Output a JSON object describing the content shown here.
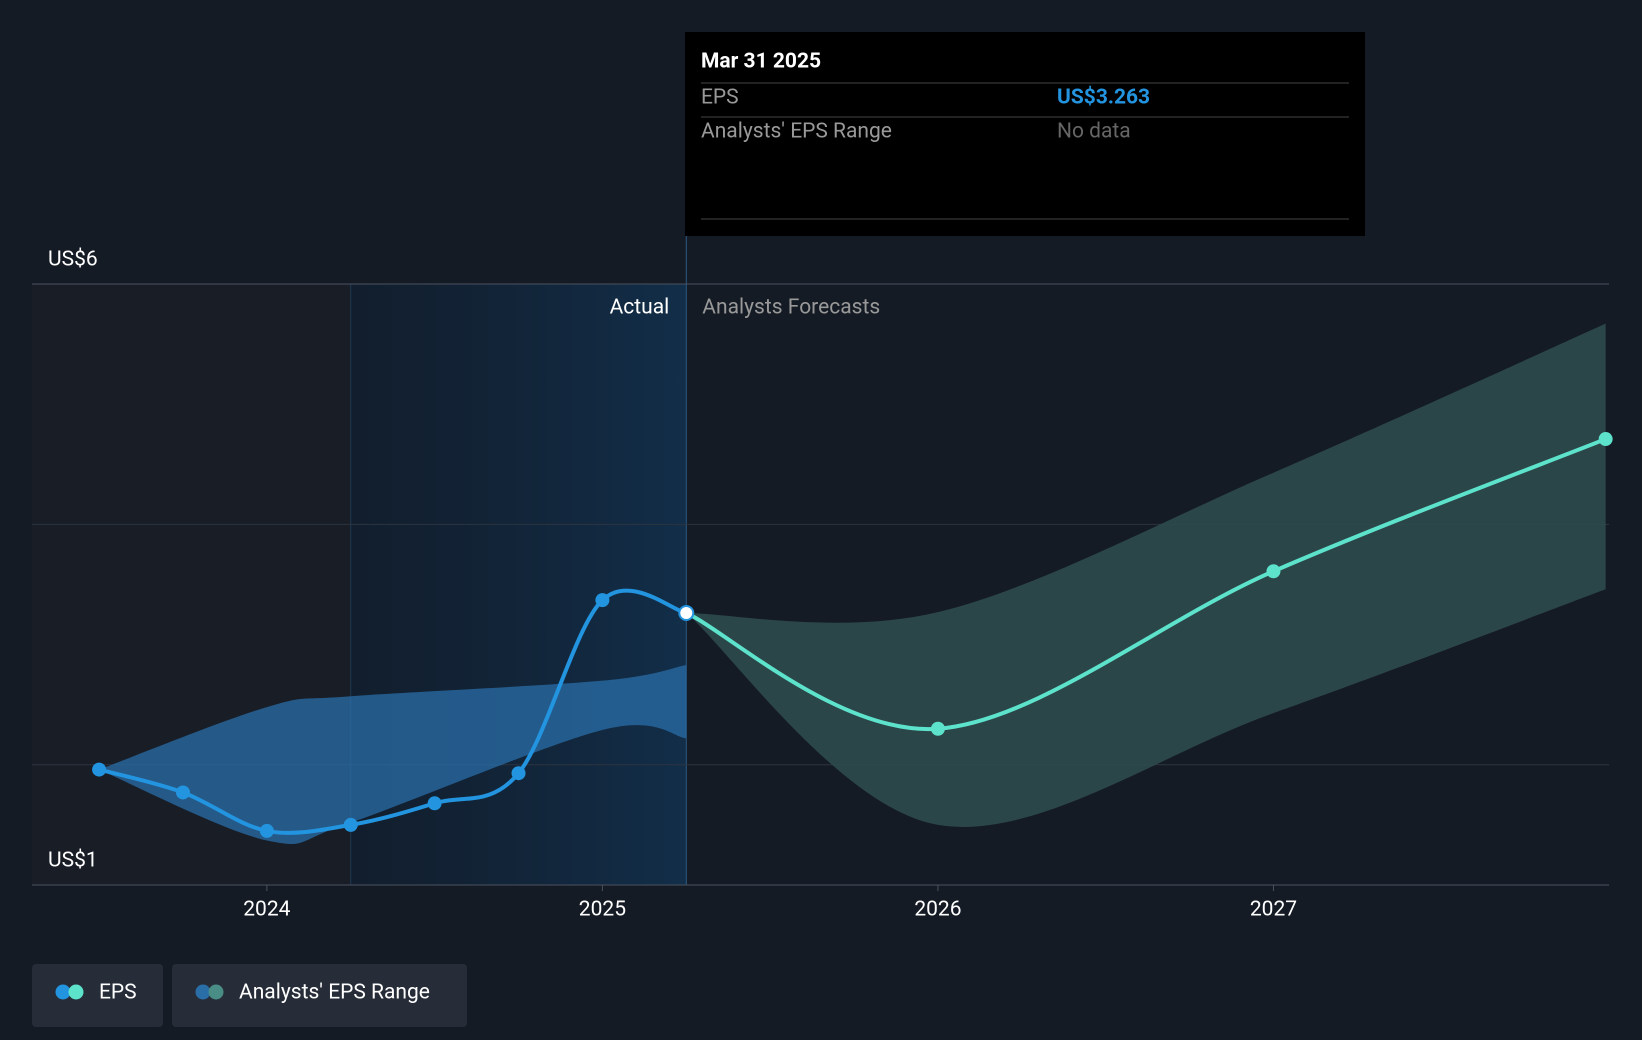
{
  "chart_data": {
    "type": "line",
    "actual_label": "Actual",
    "forecast_label": "Analysts Forecasts",
    "xlim": [
      2023.3,
      2028
    ],
    "xticks": [
      2024,
      2025,
      2026,
      2027
    ],
    "ylim": [
      1,
      6
    ],
    "yticks": [
      {
        "value": 1,
        "label": "US$1"
      },
      {
        "value": 2,
        "label": null
      },
      {
        "value": 4,
        "label": null
      },
      {
        "value": 6,
        "label": "US$6"
      }
    ],
    "grid": true,
    "actual_period": [
      2024.25,
      2025.25
    ],
    "series": [
      {
        "name": "EPS",
        "color": "#2394df",
        "forecast_color": "#5de2cc",
        "x": [
          2023.5,
          2023.75,
          2024,
          2024.25,
          2024.5,
          2024.75,
          2025,
          2025.25
        ],
        "values": [
          1.96,
          1.77,
          1.45,
          1.5,
          1.68,
          1.93,
          3.37,
          3.263
        ],
        "forecast_x": [
          2026,
          2027,
          2027.99
        ],
        "forecast_values": [
          2.3,
          3.61,
          4.71
        ]
      },
      {
        "name": "Analysts' EPS Range",
        "color": "#2a6ea8",
        "forecast_color": "#2d4b4c",
        "x": [
          2023.5,
          2024,
          2024.25,
          2025,
          2025.25
        ],
        "lower": [
          1.96,
          1.37,
          1.52,
          2.29,
          2.22
        ],
        "upper": [
          1.96,
          2.48,
          2.57,
          2.7,
          2.83
        ],
        "forecast_x": [
          2025.25,
          2026,
          2027,
          2027.99
        ],
        "forecast_lower": [
          3.263,
          1.5,
          2.43,
          3.46
        ],
        "forecast_upper": [
          3.263,
          3.27,
          4.43,
          5.67
        ]
      }
    ],
    "tooltip": {
      "date": "Mar 31 2025",
      "rows": [
        {
          "label": "EPS",
          "value": "US$3.263"
        },
        {
          "label": "Analysts' EPS Range",
          "value": "No data"
        }
      ]
    }
  }
}
